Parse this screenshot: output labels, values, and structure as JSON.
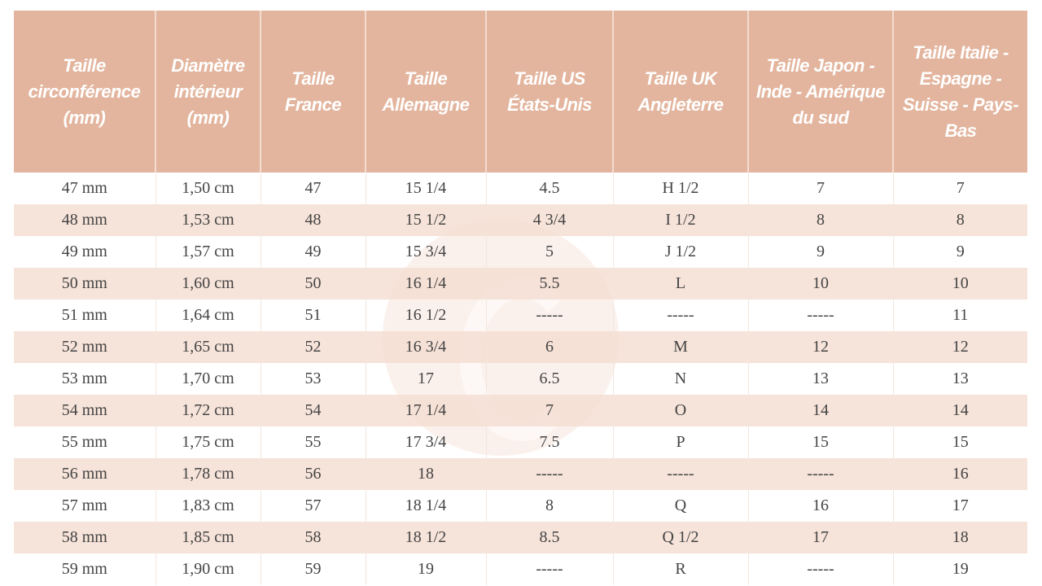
{
  "headers": [
    "Taille circonférence (mm)",
    "Diamètre intérieur (mm)",
    "Taille France",
    "Taille Allemagne",
    "Taille US États-Unis",
    "Taille UK Angleterre",
    "Taille Japon - Inde - Amérique du sud",
    "Taille Italie - Espagne - Suisse - Pays-Bas"
  ],
  "rows": [
    [
      "47 mm",
      "1,50 cm",
      "47",
      "15 1/4",
      "4.5",
      "H 1/2",
      "7",
      "7"
    ],
    [
      "48 mm",
      "1,53 cm",
      "48",
      "15 1/2",
      "4 3/4",
      "I 1/2",
      "8",
      "8"
    ],
    [
      "49 mm",
      "1,57 cm",
      "49",
      "15 3/4",
      "5",
      "J 1/2",
      "9",
      "9"
    ],
    [
      "50 mm",
      "1,60 cm",
      "50",
      "16 1/4",
      "5.5",
      "L",
      "10",
      "10"
    ],
    [
      "51 mm",
      "1,64 cm",
      "51",
      "16 1/2",
      "-----",
      "-----",
      "-----",
      "11"
    ],
    [
      "52 mm",
      "1,65 cm",
      "52",
      "16 3/4",
      "6",
      "M",
      "12",
      "12"
    ],
    [
      "53 mm",
      "1,70 cm",
      "53",
      "17",
      "6.5",
      "N",
      "13",
      "13"
    ],
    [
      "54 mm",
      "1,72 cm",
      "54",
      "17 1/4",
      "7",
      "O",
      "14",
      "14"
    ],
    [
      "55 mm",
      "1,75 cm",
      "55",
      "17 3/4",
      "7.5",
      "P",
      "15",
      "15"
    ],
    [
      "56 mm",
      "1,78 cm",
      "56",
      "18",
      "-----",
      "-----",
      "-----",
      "16"
    ],
    [
      "57 mm",
      "1,83 cm",
      "57",
      "18 1/4",
      "8",
      "Q",
      "16",
      "17"
    ],
    [
      "58 mm",
      "1,85 cm",
      "58",
      "18 1/2",
      "8.5",
      "Q 1/2",
      "17",
      "18"
    ],
    [
      "59 mm",
      "1,90 cm",
      "59",
      "19",
      "-----",
      "R",
      "-----",
      "19"
    ]
  ],
  "colors": {
    "header_bg": "#e3b59e",
    "header_text": "#ffffff",
    "shaded_row": "#f5e2d8",
    "text": "#444444"
  },
  "watermark": {
    "icon": "g-logo-watermark"
  }
}
